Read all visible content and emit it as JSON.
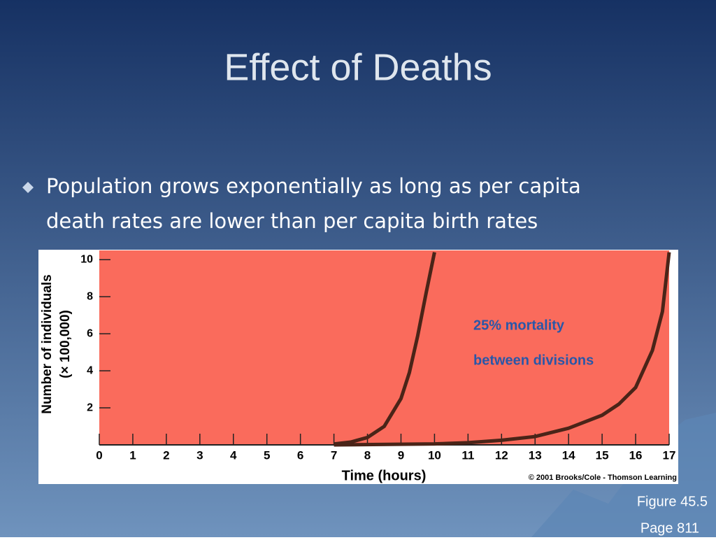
{
  "slide": {
    "title": "Effect of Deaths",
    "bullet": [
      "Population grows exponentially as long as per capita",
      "death rates are lower than per capita birth rates"
    ],
    "caption": [
      "Figure 45.5",
      "Page 811"
    ]
  },
  "chart_data": {
    "type": "line",
    "xlabel": "Time (hours)",
    "ylabel": [
      "Number of individuals",
      "(× 100,000)"
    ],
    "annotation": [
      "25% mortality",
      "between divisions"
    ],
    "credit": "© 2001 Brooks/Cole - Thomson Learning",
    "xlim": [
      0,
      17
    ],
    "ylim": [
      0,
      10.5
    ],
    "xticks": [
      0,
      1,
      2,
      3,
      4,
      5,
      6,
      7,
      8,
      9,
      10,
      11,
      12,
      13,
      14,
      15,
      16,
      17
    ],
    "yticks": [
      2,
      4,
      6,
      8,
      10
    ],
    "series": [
      {
        "color": "#4a2418",
        "x": [
          7,
          7.5,
          8,
          8.5,
          9,
          9.25,
          9.5,
          9.75,
          10
        ],
        "values": [
          0.05,
          0.15,
          0.4,
          1.0,
          2.5,
          3.9,
          5.9,
          8.2,
          10.4
        ]
      },
      {
        "color": "#4a2418",
        "x": [
          7,
          10,
          11,
          12,
          13,
          14,
          15,
          15.5,
          16,
          16.5,
          16.8,
          17
        ],
        "values": [
          0,
          0.05,
          0.12,
          0.25,
          0.45,
          0.9,
          1.6,
          2.2,
          3.1,
          5.1,
          7.2,
          10.4
        ]
      }
    ]
  }
}
